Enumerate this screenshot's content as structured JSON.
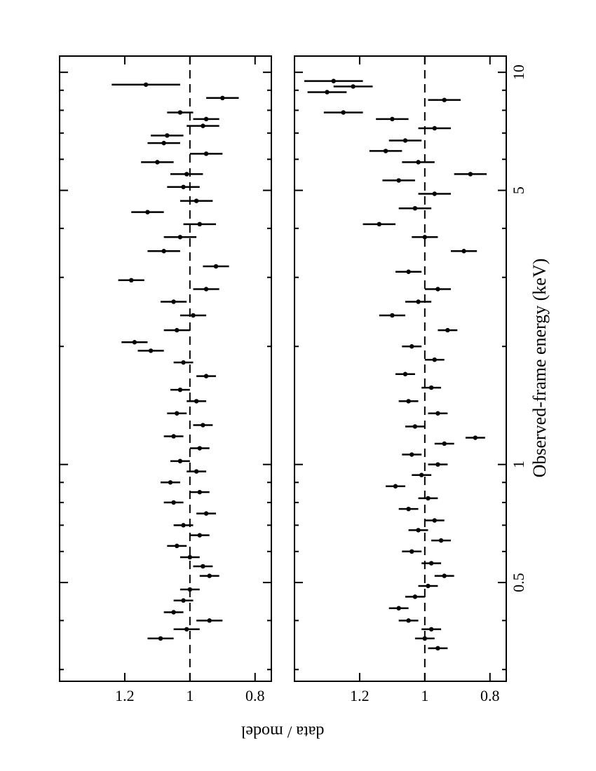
{
  "chart_data": [
    {
      "type": "errorbar",
      "ylabel": "data / model",
      "xscale": "log",
      "xlim": [
        0.28,
        11
      ],
      "ylim": [
        0.75,
        1.4
      ],
      "xticks": [
        0.5,
        1,
        5,
        10
      ],
      "xminor": [
        0.3,
        0.4,
        0.6,
        0.7,
        0.8,
        0.9,
        2,
        3,
        4,
        6,
        7,
        8,
        9
      ],
      "yticks": [
        0.8,
        1,
        1.2
      ],
      "refline": 1,
      "color": "#000000",
      "x": [
        0.36,
        0.38,
        0.4,
        0.42,
        0.45,
        0.48,
        0.52,
        0.55,
        0.58,
        0.62,
        0.66,
        0.7,
        0.75,
        0.8,
        0.85,
        0.9,
        0.96,
        1.02,
        1.1,
        1.18,
        1.26,
        1.35,
        1.45,
        1.55,
        1.68,
        1.82,
        1.95,
        2.05,
        2.2,
        2.4,
        2.6,
        2.8,
        2.95,
        3.2,
        3.5,
        3.8,
        4.1,
        4.4,
        4.7,
        5.1,
        5.5,
        5.9,
        6.2,
        6.6,
        6.9,
        7.3,
        7.6,
        7.9,
        8.6,
        9.3
      ],
      "values": [
        1.09,
        1.01,
        0.94,
        1.05,
        1.02,
        1.0,
        0.94,
        0.96,
        1.0,
        1.04,
        0.97,
        1.02,
        0.95,
        1.05,
        0.97,
        1.06,
        0.98,
        1.03,
        0.97,
        1.05,
        0.96,
        1.04,
        0.98,
        1.03,
        0.95,
        1.02,
        1.12,
        1.17,
        1.04,
        0.99,
        1.05,
        0.95,
        1.18,
        0.92,
        1.08,
        1.03,
        0.97,
        1.13,
        0.98,
        1.02,
        1.01,
        1.1,
        0.95,
        1.08,
        1.07,
        0.96,
        0.95,
        1.03,
        0.9,
        1.135
      ],
      "errors": [
        0.04,
        0.04,
        0.04,
        0.03,
        0.03,
        0.03,
        0.03,
        0.03,
        0.03,
        0.03,
        0.03,
        0.03,
        0.03,
        0.03,
        0.03,
        0.03,
        0.03,
        0.03,
        0.03,
        0.03,
        0.03,
        0.03,
        0.03,
        0.03,
        0.03,
        0.03,
        0.04,
        0.04,
        0.04,
        0.04,
        0.04,
        0.04,
        0.04,
        0.04,
        0.05,
        0.05,
        0.05,
        0.05,
        0.05,
        0.05,
        0.05,
        0.05,
        0.05,
        0.05,
        0.05,
        0.05,
        0.04,
        0.04,
        0.05,
        0.105
      ]
    },
    {
      "type": "errorbar",
      "xlabel": "Observed-frame energy  (keV)",
      "xscale": "log",
      "xlim": [
        0.28,
        11
      ],
      "ylim": [
        0.75,
        1.4
      ],
      "xticks": [
        0.5,
        1,
        5,
        10
      ],
      "xminor": [
        0.3,
        0.4,
        0.6,
        0.7,
        0.8,
        0.9,
        2,
        3,
        4,
        6,
        7,
        8,
        9
      ],
      "yticks": [
        0.8,
        1,
        1.2
      ],
      "refline": 1,
      "color": "#000000",
      "x": [
        0.34,
        0.36,
        0.38,
        0.4,
        0.43,
        0.46,
        0.49,
        0.52,
        0.56,
        0.6,
        0.64,
        0.68,
        0.72,
        0.77,
        0.82,
        0.88,
        0.94,
        1.0,
        1.06,
        1.13,
        1.17,
        1.25,
        1.35,
        1.45,
        1.57,
        1.7,
        1.85,
        2.0,
        2.2,
        2.4,
        2.6,
        2.8,
        3.1,
        3.5,
        3.8,
        4.1,
        4.5,
        4.9,
        5.3,
        5.5,
        5.9,
        6.3,
        6.7,
        7.2,
        7.6,
        7.9,
        8.5,
        8.9,
        9.2,
        9.5
      ],
      "values": [
        0.96,
        1.0,
        0.98,
        1.05,
        1.08,
        1.03,
        0.99,
        0.94,
        0.98,
        1.04,
        0.95,
        1.02,
        0.97,
        1.05,
        0.99,
        1.09,
        1.01,
        0.96,
        1.04,
        0.94,
        0.845,
        1.03,
        0.96,
        1.05,
        0.98,
        1.06,
        0.97,
        1.04,
        0.93,
        1.1,
        1.02,
        0.96,
        1.05,
        0.88,
        1.0,
        1.14,
        1.03,
        0.97,
        1.08,
        0.86,
        1.02,
        1.12,
        1.06,
        0.97,
        1.1,
        1.25,
        0.94,
        1.3,
        1.22,
        1.28
      ],
      "errors": [
        0.03,
        0.03,
        0.03,
        0.03,
        0.03,
        0.03,
        0.03,
        0.03,
        0.03,
        0.03,
        0.03,
        0.03,
        0.03,
        0.03,
        0.03,
        0.03,
        0.03,
        0.03,
        0.03,
        0.03,
        0.03,
        0.03,
        0.03,
        0.03,
        0.03,
        0.03,
        0.03,
        0.03,
        0.03,
        0.04,
        0.04,
        0.04,
        0.04,
        0.04,
        0.04,
        0.05,
        0.05,
        0.05,
        0.05,
        0.05,
        0.05,
        0.05,
        0.05,
        0.05,
        0.05,
        0.06,
        0.05,
        0.06,
        0.06,
        0.09
      ]
    }
  ]
}
